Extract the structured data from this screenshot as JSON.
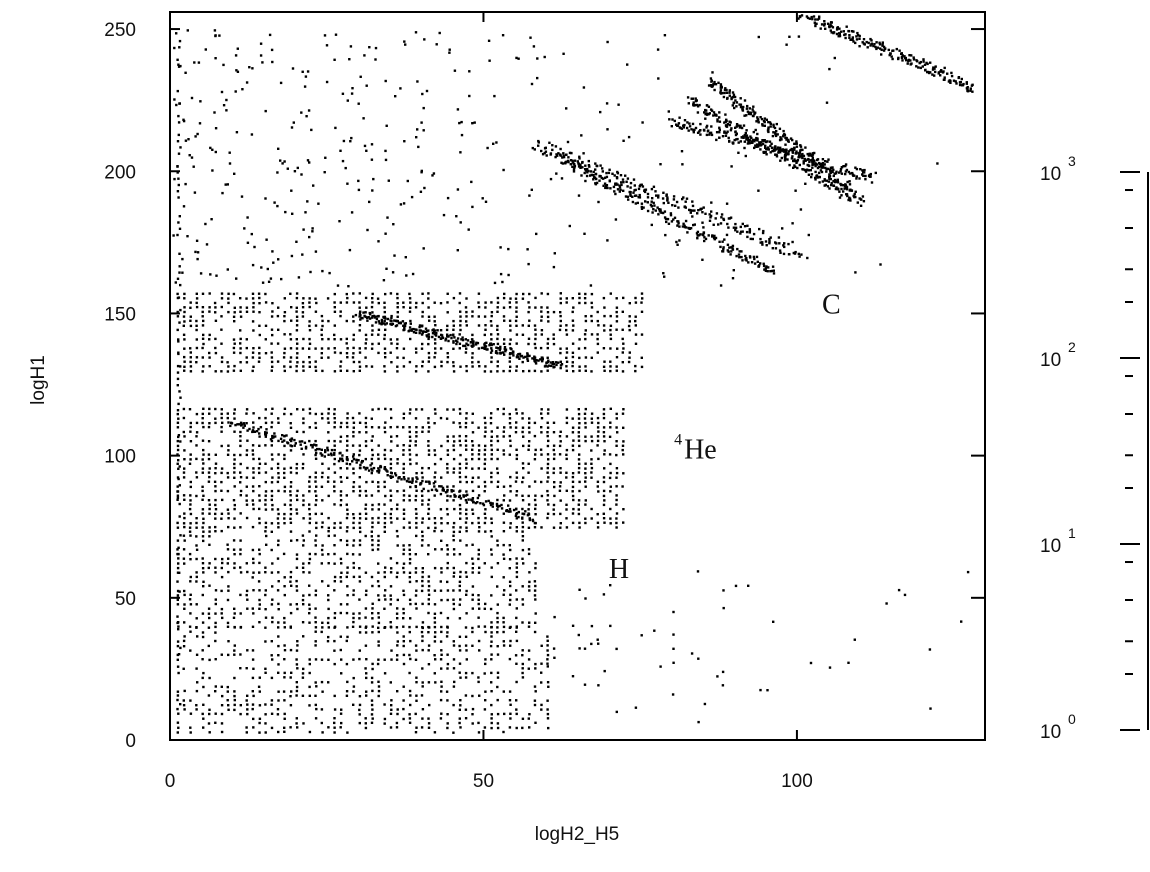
{
  "chart_data": {
    "type": "scatter",
    "title": "",
    "xlabel": "logH2_H5",
    "ylabel": "logH1",
    "xlim": [
      0,
      130
    ],
    "ylim": [
      0,
      256
    ],
    "x_ticks": [
      {
        "value": 0,
        "label": "0"
      },
      {
        "value": 50,
        "label": "50"
      },
      {
        "value": 100,
        "label": "100"
      }
    ],
    "y_ticks": [
      {
        "value": 0,
        "label": "0"
      },
      {
        "value": 50,
        "label": "50"
      },
      {
        "value": 100,
        "label": "100"
      },
      {
        "value": 150,
        "label": "150"
      },
      {
        "value": 200,
        "label": "200"
      },
      {
        "value": 250,
        "label": "250"
      }
    ],
    "grid": false,
    "annotations": [
      {
        "text": "C",
        "sup": "",
        "x": 104,
        "y": 150
      },
      {
        "text": "He",
        "sup": "4",
        "x": 82,
        "y": 99
      },
      {
        "text": "H",
        "sup": "",
        "x": 70,
        "y": 57
      }
    ],
    "colorbar": {
      "scale": "log",
      "range": [
        1,
        1000
      ],
      "ticks": [
        {
          "base": "10",
          "exp": "0",
          "value": 1
        },
        {
          "base": "10",
          "exp": "1",
          "value": 10
        },
        {
          "base": "10",
          "exp": "2",
          "value": 100
        },
        {
          "base": "10",
          "exp": "3",
          "value": 1000
        }
      ]
    },
    "point_color": "#000000",
    "series": [
      {
        "regions": [
          {
            "x": [
              1,
              75
            ],
            "y": [
              130,
              158
            ],
            "density": 0.55
          },
          {
            "x": [
              1,
              72
            ],
            "y": [
              75,
              118
            ],
            "density": 0.55
          },
          {
            "x": [
              1,
              58
            ],
            "y": [
              40,
              75
            ],
            "density": 0.45
          },
          {
            "x": [
              1,
              60
            ],
            "y": [
              3,
              40
            ],
            "density": 0.35
          },
          {
            "x": [
              60,
              80
            ],
            "y": [
              10,
              60
            ],
            "density": 0.04
          },
          {
            "x": [
              80,
              130
            ],
            "y": [
              5,
              60
            ],
            "density": 0.015
          }
        ],
        "bands": [
          {
            "x0": 58,
            "y0": 210,
            "x1": 100,
            "y1": 172,
            "spread": 5
          },
          {
            "x0": 62,
            "y0": 205,
            "x1": 96,
            "y1": 165,
            "spread": 4
          },
          {
            "x0": 80,
            "y0": 218,
            "x1": 112,
            "y1": 198,
            "spread": 4
          },
          {
            "x0": 83,
            "y0": 225,
            "x1": 110,
            "y1": 190,
            "spread": 4
          },
          {
            "x0": 86,
            "y0": 232,
            "x1": 108,
            "y1": 195,
            "spread": 4
          },
          {
            "x0": 100,
            "y0": 256,
            "x1": 128,
            "y1": 230,
            "spread": 4
          },
          {
            "x0": 10,
            "y0": 112,
            "x1": 58,
            "y1": 78,
            "spread": 3
          },
          {
            "x0": 30,
            "y0": 150,
            "x1": 62,
            "y1": 132,
            "spread": 3
          }
        ],
        "scatter_background": {
          "x": [
            0,
            125
          ],
          "y": [
            160,
            250
          ],
          "count": 380
        }
      }
    ]
  }
}
